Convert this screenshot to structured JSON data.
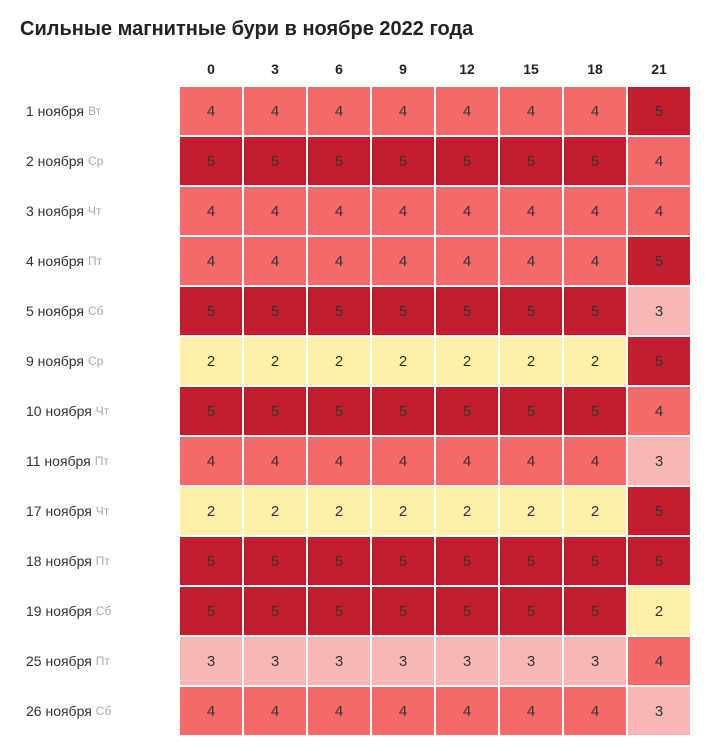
{
  "title": "Сильные магнитные бури в ноябре 2022 года",
  "type": "heatmap",
  "hours": [
    "0",
    "3",
    "6",
    "9",
    "12",
    "15",
    "18",
    "21"
  ],
  "value_colors": {
    "2": "#fff0a8",
    "3": "#f8b6b6",
    "4": "#f26a6a",
    "5": "#c11f2e"
  },
  "text_color": "#333333",
  "background_color": "#ffffff",
  "grid_gap_color": "#ffffff",
  "cell_size": {
    "width": 62,
    "height": 48
  },
  "row_label_width": 158,
  "title_fontsize": 20,
  "header_fontsize": 14,
  "row_label_fontsize": 14,
  "dow_fontsize": 12,
  "dow_color": "#a8a8a8",
  "cell_fontsize": 15,
  "rows": [
    {
      "date": "1 ноября",
      "dow": "Вт",
      "values": [
        4,
        4,
        4,
        4,
        4,
        4,
        4,
        5
      ]
    },
    {
      "date": "2 ноября",
      "dow": "Ср",
      "values": [
        5,
        5,
        5,
        5,
        5,
        5,
        5,
        4
      ]
    },
    {
      "date": "3 ноября",
      "dow": "Чт",
      "values": [
        4,
        4,
        4,
        4,
        4,
        4,
        4,
        4
      ]
    },
    {
      "date": "4 ноября",
      "dow": "Пт",
      "values": [
        4,
        4,
        4,
        4,
        4,
        4,
        4,
        5
      ]
    },
    {
      "date": "5 ноября",
      "dow": "Сб",
      "values": [
        5,
        5,
        5,
        5,
        5,
        5,
        5,
        3
      ]
    },
    {
      "date": "9 ноября",
      "dow": "Ср",
      "values": [
        2,
        2,
        2,
        2,
        2,
        2,
        2,
        5
      ]
    },
    {
      "date": "10 ноября",
      "dow": "Чт",
      "values": [
        5,
        5,
        5,
        5,
        5,
        5,
        5,
        4
      ]
    },
    {
      "date": "11 ноября",
      "dow": "Пт",
      "values": [
        4,
        4,
        4,
        4,
        4,
        4,
        4,
        3
      ]
    },
    {
      "date": "17 ноября",
      "dow": "Чт",
      "values": [
        2,
        2,
        2,
        2,
        2,
        2,
        2,
        5
      ]
    },
    {
      "date": "18 ноября",
      "dow": "Пт",
      "values": [
        5,
        5,
        5,
        5,
        5,
        5,
        5,
        5
      ]
    },
    {
      "date": "19 ноября",
      "dow": "Сб",
      "values": [
        5,
        5,
        5,
        5,
        5,
        5,
        5,
        2
      ]
    },
    {
      "date": "25 ноября",
      "dow": "Пт",
      "values": [
        3,
        3,
        3,
        3,
        3,
        3,
        3,
        4
      ]
    },
    {
      "date": "26 ноября",
      "dow": "Сб",
      "values": [
        4,
        4,
        4,
        4,
        4,
        4,
        4,
        3
      ]
    }
  ]
}
